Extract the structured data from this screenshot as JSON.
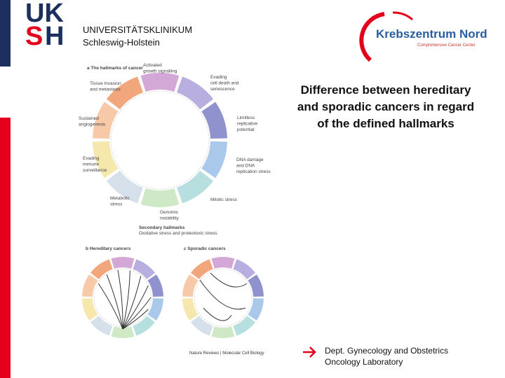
{
  "header": {
    "logo": [
      "UK",
      "S",
      "H"
    ],
    "institution": [
      "UNIVERSITÄTSKLINIKUM",
      "Schleswig-Holstein"
    ],
    "partner": {
      "name": "Krebszentrum Nord",
      "subtitle": "Comprehensive Cancer Center"
    }
  },
  "title": [
    "Difference between hereditary",
    "and sporadic cancers in regard",
    "of the defined hallmarks"
  ],
  "figure": {
    "panel_a": "a  The hallmarks of cancer",
    "labels": [
      [
        "Activated",
        "growth signalling"
      ],
      [
        "Evading",
        "cell death and",
        "senescence"
      ],
      [
        "Limitless",
        "replicative",
        "potential"
      ],
      [
        "DNA damage",
        "and DNA",
        "replication stress"
      ],
      [
        "Mitotic stress"
      ],
      [
        "Genomic",
        "instability"
      ],
      [
        "Metabolic",
        "stress"
      ],
      [
        "Evading",
        "immune",
        "surveillance"
      ],
      [
        "Sustained",
        "angiogenesis"
      ],
      [
        "Tissue invasion",
        "and metastasis"
      ]
    ],
    "secondary": [
      "Secondary hallmarks",
      "Oxidative stress and proteotoxic stress"
    ],
    "panel_b": "b  Hereditary cancers",
    "panel_c": "c  Sporadic cancers",
    "source": "Nature Reviews | Molecular Cell Biology"
  },
  "footer": [
    "Dept. Gynecology and Obstetrics",
    "Oncology Laboratory"
  ]
}
